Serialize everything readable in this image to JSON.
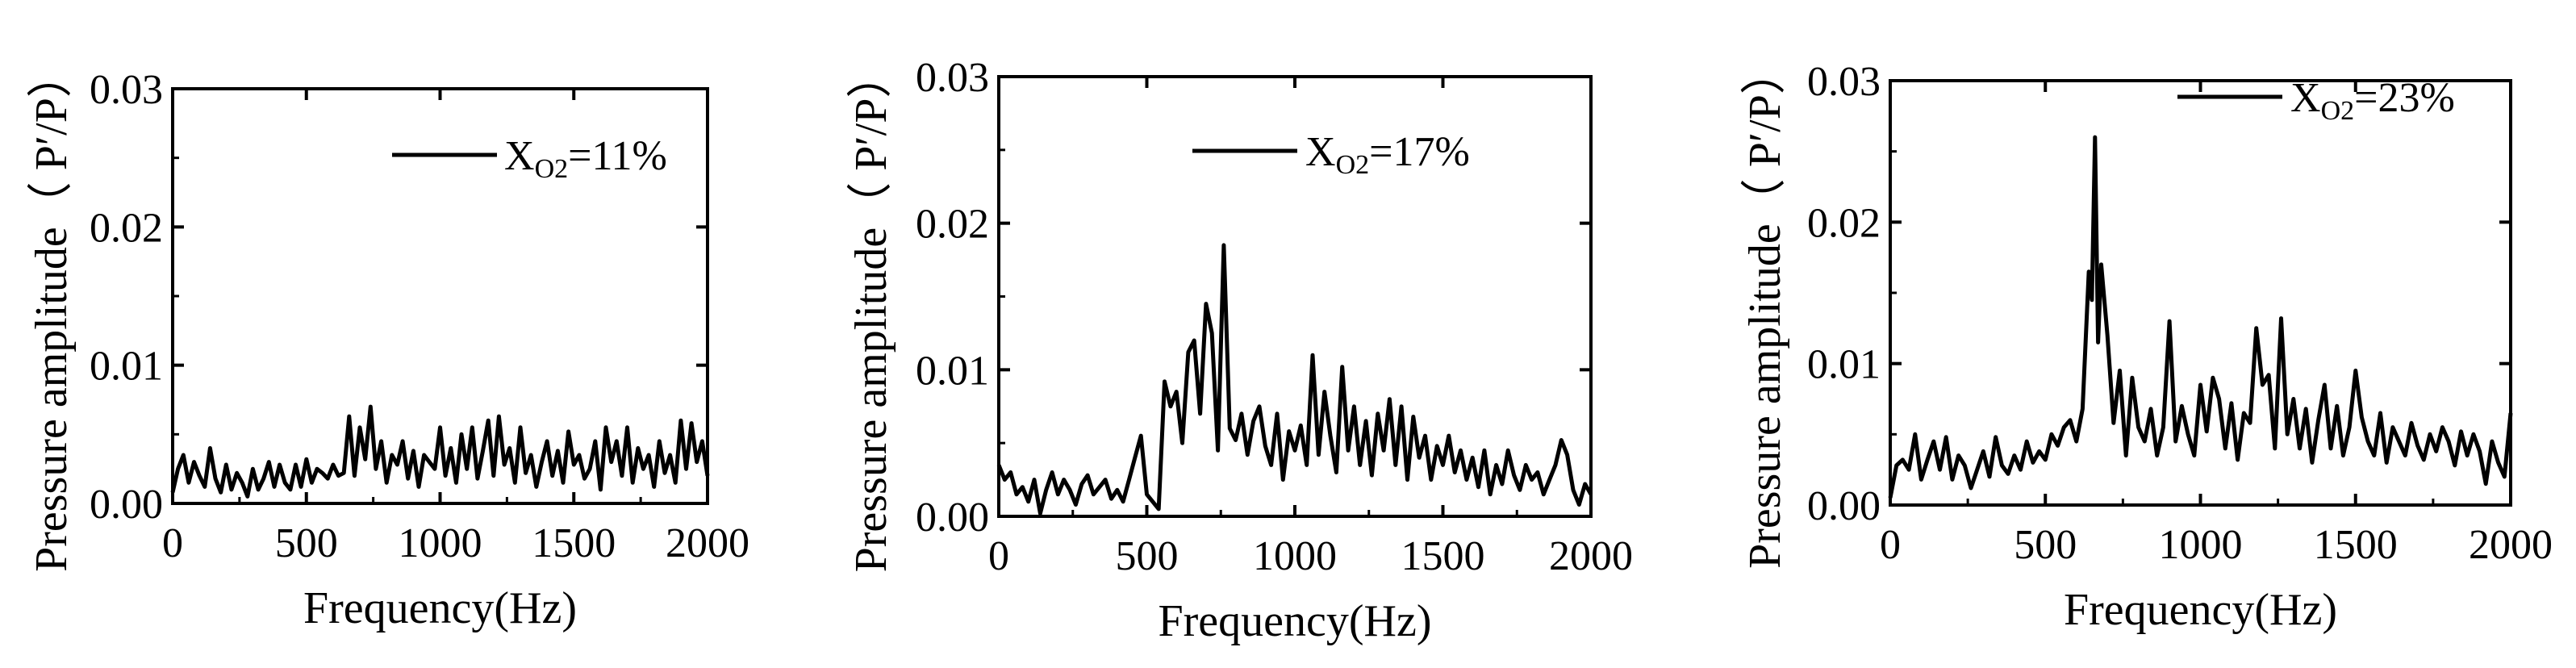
{
  "chart_data": [
    {
      "type": "line",
      "legend": "X",
      "legend_sub": "O2",
      "legend_suffix": "=11%",
      "legend_position": "top-right",
      "xlabel": "Frequency(Hz)",
      "ylabel": "Pressure amplitude（ P′/P）",
      "xlim": [
        0,
        2000
      ],
      "ylim": [
        0,
        0.03
      ],
      "x_ticks": [
        "0",
        "500",
        "1000",
        "1500",
        "2000"
      ],
      "y_ticks": [
        "0.00",
        "0.01",
        "0.02",
        "0.03"
      ],
      "grid": false,
      "line_color": "#000000",
      "series": [
        {
          "x": [
            0,
            20,
            40,
            60,
            80,
            100,
            120,
            140,
            160,
            180,
            200,
            220,
            240,
            260,
            280,
            300,
            320,
            340,
            360,
            380,
            400,
            420,
            440,
            460,
            480,
            500,
            520,
            540,
            560,
            580,
            600,
            620,
            640,
            660,
            680,
            700,
            720,
            740,
            760,
            780,
            800,
            820,
            840,
            860,
            880,
            900,
            920,
            940,
            960,
            980,
            1000,
            1020,
            1040,
            1060,
            1080,
            1100,
            1120,
            1140,
            1160,
            1180,
            1200,
            1220,
            1240,
            1260,
            1280,
            1300,
            1320,
            1340,
            1360,
            1380,
            1400,
            1420,
            1440,
            1460,
            1480,
            1500,
            1520,
            1540,
            1560,
            1580,
            1600,
            1620,
            1640,
            1660,
            1680,
            1700,
            1720,
            1740,
            1760,
            1780,
            1800,
            1820,
            1840,
            1860,
            1880,
            1900,
            1920,
            1940,
            1960,
            1980,
            2000
          ],
          "y": [
            0.0008,
            0.0025,
            0.0035,
            0.0015,
            0.003,
            0.002,
            0.0012,
            0.004,
            0.0018,
            0.0008,
            0.0028,
            0.001,
            0.0022,
            0.0015,
            0.0005,
            0.0025,
            0.001,
            0.0018,
            0.003,
            0.0012,
            0.0028,
            0.0015,
            0.001,
            0.0028,
            0.0012,
            0.0032,
            0.0015,
            0.0025,
            0.0022,
            0.0018,
            0.0028,
            0.002,
            0.0022,
            0.0063,
            0.002,
            0.0055,
            0.0032,
            0.007,
            0.0025,
            0.0045,
            0.0015,
            0.0035,
            0.0028,
            0.0045,
            0.0018,
            0.0038,
            0.0012,
            0.0035,
            0.003,
            0.0025,
            0.0055,
            0.002,
            0.004,
            0.0015,
            0.005,
            0.0025,
            0.0055,
            0.0018,
            0.0038,
            0.006,
            0.002,
            0.0063,
            0.0028,
            0.004,
            0.0015,
            0.0055,
            0.0022,
            0.0035,
            0.0012,
            0.003,
            0.0045,
            0.002,
            0.0038,
            0.0015,
            0.0052,
            0.0028,
            0.0035,
            0.0018,
            0.0025,
            0.0045,
            0.001,
            0.0055,
            0.003,
            0.0045,
            0.002,
            0.0055,
            0.0015,
            0.004,
            0.0025,
            0.0035,
            0.0012,
            0.0045,
            0.0022,
            0.0035,
            0.0015,
            0.006,
            0.0025,
            0.0058,
            0.003,
            0.0045,
            0.002
          ]
        }
      ]
    },
    {
      "type": "line",
      "legend": "X",
      "legend_sub": "O2",
      "legend_suffix": "=17%",
      "legend_position": "top-right",
      "xlabel": "Frequency(Hz)",
      "ylabel": "Pressure amplitude（ P′/P）",
      "xlim": [
        0,
        2000
      ],
      "ylim": [
        0,
        0.03
      ],
      "x_ticks": [
        "0",
        "500",
        "1000",
        "1500",
        "2000"
      ],
      "y_ticks": [
        "0.00",
        "0.01",
        "0.02",
        "0.03"
      ],
      "grid": false,
      "line_color": "#000000",
      "series": [
        {
          "x": [
            0,
            20,
            40,
            60,
            80,
            100,
            120,
            140,
            160,
            180,
            200,
            220,
            240,
            260,
            280,
            300,
            320,
            340,
            360,
            380,
            400,
            420,
            440,
            460,
            480,
            500,
            520,
            540,
            560,
            580,
            600,
            620,
            640,
            660,
            680,
            700,
            720,
            740,
            760,
            780,
            800,
            820,
            840,
            860,
            880,
            900,
            920,
            940,
            960,
            980,
            1000,
            1020,
            1040,
            1060,
            1080,
            1100,
            1120,
            1140,
            1160,
            1180,
            1200,
            1220,
            1240,
            1260,
            1280,
            1300,
            1320,
            1340,
            1360,
            1380,
            1400,
            1420,
            1440,
            1460,
            1480,
            1500,
            1520,
            1540,
            1560,
            1580,
            1600,
            1620,
            1640,
            1660,
            1680,
            1700,
            1720,
            1740,
            1760,
            1780,
            1800,
            1820,
            1840,
            1860,
            1880,
            1900,
            1920,
            1940,
            1960,
            1980,
            2000
          ],
          "y": [
            0.0035,
            0.0025,
            0.003,
            0.0015,
            0.002,
            0.001,
            0.0025,
            0.0002,
            0.0018,
            0.003,
            0.0015,
            0.0025,
            0.0018,
            0.0008,
            0.0022,
            0.0028,
            0.0015,
            0.002,
            0.0025,
            0.0012,
            0.0018,
            0.001,
            0.0025,
            0.004,
            0.0055,
            0.0015,
            0.001,
            0.0005,
            0.0092,
            0.0075,
            0.0085,
            0.005,
            0.0112,
            0.012,
            0.007,
            0.0145,
            0.0125,
            0.0045,
            0.0185,
            0.006,
            0.0052,
            0.007,
            0.0042,
            0.0065,
            0.0075,
            0.0048,
            0.0035,
            0.007,
            0.0025,
            0.0058,
            0.0045,
            0.0062,
            0.0035,
            0.011,
            0.0042,
            0.0085,
            0.0055,
            0.003,
            0.0102,
            0.0045,
            0.0075,
            0.0035,
            0.0065,
            0.0028,
            0.007,
            0.0045,
            0.008,
            0.0035,
            0.0075,
            0.0025,
            0.0068,
            0.004,
            0.0055,
            0.0025,
            0.0048,
            0.0035,
            0.0055,
            0.003,
            0.0045,
            0.0025,
            0.004,
            0.002,
            0.0045,
            0.0015,
            0.0035,
            0.0022,
            0.0045,
            0.0028,
            0.0018,
            0.0035,
            0.0025,
            0.003,
            0.0015,
            0.0025,
            0.0035,
            0.0052,
            0.0042,
            0.0018,
            0.0008,
            0.0022,
            0.0015
          ]
        }
      ]
    },
    {
      "type": "line",
      "legend": "X",
      "legend_sub": "O2",
      "legend_suffix": "=23%",
      "legend_position": "top-right",
      "xlabel": "Frequency(Hz)",
      "ylabel": "Pressure amplitude（ P′/P）",
      "xlim": [
        0,
        2000
      ],
      "ylim": [
        0,
        0.03
      ],
      "x_ticks": [
        "0",
        "500",
        "1000",
        "1500",
        "2000"
      ],
      "y_ticks": [
        "0.00",
        "0.01",
        "0.02",
        "0.03"
      ],
      "grid": false,
      "line_color": "#000000",
      "series": [
        {
          "x": [
            0,
            20,
            40,
            60,
            80,
            100,
            120,
            140,
            160,
            180,
            200,
            220,
            240,
            260,
            280,
            300,
            320,
            340,
            360,
            380,
            400,
            420,
            440,
            460,
            480,
            500,
            520,
            540,
            560,
            580,
            600,
            620,
            640,
            650,
            660,
            670,
            680,
            700,
            720,
            740,
            760,
            780,
            800,
            820,
            840,
            860,
            880,
            900,
            920,
            940,
            960,
            980,
            1000,
            1020,
            1040,
            1060,
            1080,
            1100,
            1120,
            1140,
            1160,
            1180,
            1200,
            1220,
            1240,
            1260,
            1280,
            1300,
            1320,
            1340,
            1360,
            1380,
            1400,
            1420,
            1440,
            1460,
            1480,
            1500,
            1520,
            1540,
            1560,
            1580,
            1600,
            1620,
            1640,
            1660,
            1680,
            1700,
            1720,
            1740,
            1760,
            1780,
            1800,
            1820,
            1840,
            1860,
            1880,
            1900,
            1920,
            1940,
            1960,
            1980,
            2000
          ],
          "y": [
            0.0005,
            0.0028,
            0.0032,
            0.0025,
            0.005,
            0.0018,
            0.0032,
            0.0045,
            0.0025,
            0.0048,
            0.0018,
            0.0035,
            0.0028,
            0.0012,
            0.0025,
            0.0038,
            0.002,
            0.0048,
            0.0028,
            0.0022,
            0.0035,
            0.0025,
            0.0045,
            0.003,
            0.0038,
            0.0032,
            0.005,
            0.0042,
            0.0055,
            0.006,
            0.0045,
            0.0068,
            0.0165,
            0.0145,
            0.026,
            0.0115,
            0.017,
            0.012,
            0.0058,
            0.0095,
            0.0035,
            0.009,
            0.0055,
            0.0045,
            0.0068,
            0.0035,
            0.0055,
            0.013,
            0.0045,
            0.007,
            0.005,
            0.0035,
            0.0085,
            0.0052,
            0.009,
            0.0075,
            0.004,
            0.0072,
            0.0032,
            0.0065,
            0.0058,
            0.0125,
            0.0085,
            0.0092,
            0.004,
            0.0132,
            0.005,
            0.0075,
            0.004,
            0.0068,
            0.003,
            0.006,
            0.0085,
            0.004,
            0.007,
            0.0035,
            0.0055,
            0.0095,
            0.0062,
            0.0045,
            0.0035,
            0.0065,
            0.003,
            0.0055,
            0.0045,
            0.0035,
            0.0058,
            0.0042,
            0.0032,
            0.005,
            0.0038,
            0.0055,
            0.0045,
            0.0028,
            0.0052,
            0.0035,
            0.005,
            0.0038,
            0.0015,
            0.0045,
            0.003,
            0.002,
            0.0065
          ]
        }
      ]
    }
  ]
}
